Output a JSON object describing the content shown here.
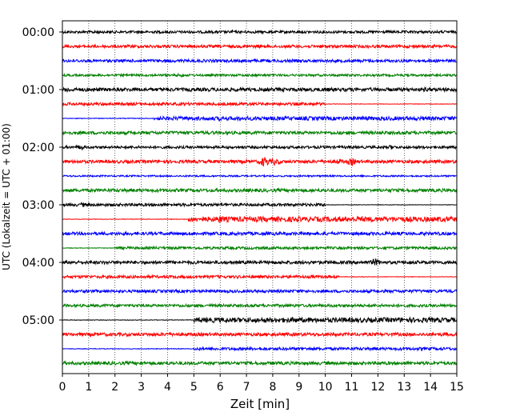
{
  "chart_data": {
    "type": "line",
    "chart_kind": "helicorder seismogram",
    "xlabel": "Zeit  [min]",
    "ylabel": "UTC (Lokalzeit = UTC + 01:00)",
    "xlim": [
      0,
      15
    ],
    "x_ticks": [
      0,
      1,
      2,
      3,
      4,
      5,
      6,
      7,
      8,
      9,
      10,
      11,
      12,
      13,
      14,
      15
    ],
    "y_tick_labels": [
      "00:00",
      "01:00",
      "02:00",
      "03:00",
      "04:00",
      "05:00"
    ],
    "grid": "vertical dotted lines at each minute",
    "colors": [
      "#000000",
      "#ff0000",
      "#0000ff",
      "#008000"
    ],
    "traces_per_hour": 4,
    "trace_minutes": 15,
    "traces": [
      {
        "start": "00:00",
        "color": "#000000",
        "amp": 1.6,
        "events": [
          {
            "min": 1.3,
            "amp": 3
          },
          {
            "min": 6.5,
            "amp": 2.5
          }
        ]
      },
      {
        "start": "00:15",
        "color": "#ff0000",
        "amp": 1.8,
        "events": [
          {
            "min": 7.5,
            "amp": 2.5
          }
        ]
      },
      {
        "start": "00:30",
        "color": "#0000ff",
        "amp": 1.8,
        "events": []
      },
      {
        "start": "00:45",
        "color": "#008000",
        "amp": 1.4,
        "events": [
          {
            "min": 4.5,
            "amp": 2.5
          }
        ]
      },
      {
        "start": "01:00",
        "color": "#000000",
        "amp": 2.2,
        "events": [
          {
            "min": 0.2,
            "amp": 3.5
          },
          {
            "min": 10,
            "amp": 3
          },
          {
            "min": 13.8,
            "amp": 3
          }
        ]
      },
      {
        "start": "01:15",
        "color": "#ff0000",
        "amp": 1.8,
        "quiet_after_min": 10
      },
      {
        "start": "01:30",
        "color": "#0000ff",
        "amp": 1.2,
        "active_from_min": 3.5,
        "active_amp": 2.4,
        "events": [
          {
            "min": 6,
            "amp": 3
          }
        ]
      },
      {
        "start": "01:45",
        "color": "#008000",
        "amp": 2.0,
        "events": []
      },
      {
        "start": "02:00",
        "color": "#000000",
        "amp": 1.6,
        "events": [
          {
            "min": 0.7,
            "amp": 3.5
          },
          {
            "min": 12.5,
            "amp": 3
          }
        ]
      },
      {
        "start": "02:15",
        "color": "#ff0000",
        "amp": 2.0,
        "events": [
          {
            "min": 7.7,
            "amp": 7
          },
          {
            "min": 8.1,
            "amp": 5
          },
          {
            "min": 10.5,
            "amp": 4
          },
          {
            "min": 11,
            "amp": 5
          }
        ]
      },
      {
        "start": "02:30",
        "color": "#0000ff",
        "amp": 1.0,
        "events": []
      },
      {
        "start": "02:45",
        "color": "#008000",
        "amp": 2.0,
        "events": [
          {
            "min": 12.5,
            "amp": 3
          }
        ]
      },
      {
        "start": "03:00",
        "color": "#000000",
        "amp": 1.8,
        "quiet_after_min": 10,
        "events": [
          {
            "min": 0.8,
            "amp": 3
          }
        ]
      },
      {
        "start": "03:15",
        "color": "#ff0000",
        "amp": 1.0,
        "active_from_min": 4.8,
        "active_amp": 3.2,
        "events": [
          {
            "min": 6,
            "amp": 5
          },
          {
            "min": 14.5,
            "amp": 3
          }
        ]
      },
      {
        "start": "03:30",
        "color": "#0000ff",
        "amp": 2.0,
        "events": []
      },
      {
        "start": "03:45",
        "color": "#008000",
        "amp": 1.0,
        "active_from_min": 2,
        "active_amp": 1.6,
        "events": []
      },
      {
        "start": "04:00",
        "color": "#000000",
        "amp": 2.0,
        "events": [
          {
            "min": 11.9,
            "amp": 5
          }
        ]
      },
      {
        "start": "04:15",
        "color": "#ff0000",
        "amp": 1.8,
        "quiet_after_min": 10.5
      },
      {
        "start": "04:30",
        "color": "#0000ff",
        "amp": 1.8,
        "events": []
      },
      {
        "start": "04:45",
        "color": "#008000",
        "amp": 1.8,
        "events": []
      },
      {
        "start": "05:00",
        "color": "#000000",
        "amp": 1.0,
        "active_from_min": 5,
        "active_amp": 3.0,
        "events": [
          {
            "min": 8.8,
            "amp": 4.5
          },
          {
            "min": 13,
            "amp": 3.5
          }
        ]
      },
      {
        "start": "05:15",
        "color": "#ff0000",
        "amp": 2.0,
        "events": []
      },
      {
        "start": "05:30",
        "color": "#0000ff",
        "amp": 1.2,
        "active_from_min": 5,
        "active_amp": 1.8,
        "events": []
      },
      {
        "start": "05:45",
        "color": "#008000",
        "amp": 2.0,
        "events": []
      }
    ]
  }
}
